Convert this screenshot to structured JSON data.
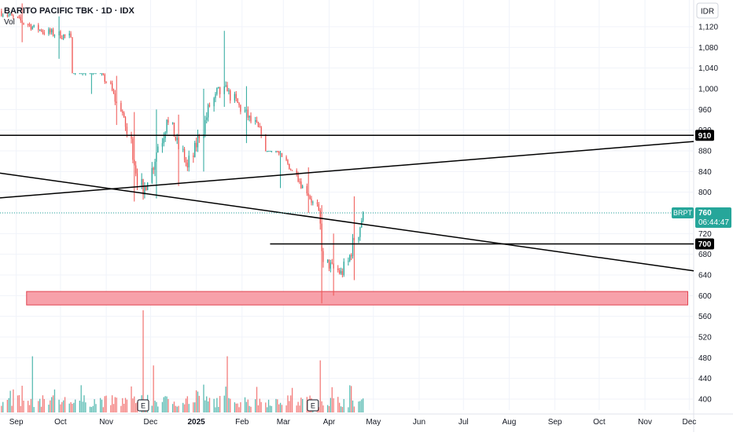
{
  "header": {
    "title": "BARITO PACIFIC TBK · 1D · IDX",
    "vol_label": "Vol"
  },
  "currency_badge": "IDR",
  "colors": {
    "up": "#26a69a",
    "down": "#ef5350",
    "zone_fill": "#f7a1aa",
    "zone_stroke": "#e0434f",
    "line": "#000000",
    "price_tag": "#26a69a",
    "grid": "#f0f3fa"
  },
  "price_tag": {
    "symbol": "BRPT",
    "price": "760",
    "countdown": "06:44:47"
  },
  "level_labels": [
    "910",
    "700"
  ],
  "earnings_markers": [
    "E",
    "E"
  ],
  "chart_data": {
    "type": "candlestick",
    "y_axis": {
      "ticks": [
        "1,120",
        "1,080",
        "1,040",
        "1,000",
        "960",
        "920",
        "880",
        "840",
        "800",
        "760",
        "720",
        "680",
        "640",
        "600",
        "560",
        "520",
        "480",
        "440",
        "400"
      ],
      "tick_values": [
        1120,
        1080,
        1040,
        1000,
        960,
        920,
        880,
        840,
        800,
        760,
        720,
        680,
        640,
        600,
        560,
        520,
        480,
        440,
        400
      ],
      "range": [
        388,
        1140
      ]
    },
    "x_axis": {
      "labels": [
        "Sep",
        "Oct",
        "Nov",
        "Dec",
        "2025",
        "Feb",
        "Mar",
        "Apr",
        "May",
        "Jun",
        "Jul",
        "Aug",
        "Sep",
        "Oct",
        "Nov",
        "Dec"
      ],
      "dates": [
        "2024-09-01",
        "2024-10-01",
        "2024-11-01",
        "2024-12-01",
        "2025-01-01",
        "2025-02-01",
        "2025-03-01",
        "2025-04-01",
        "2025-05-01",
        "2025-06-01",
        "2025-07-01",
        "2025-08-01",
        "2025-09-01",
        "2025-10-01",
        "2025-11-01",
        "2025-12-01"
      ],
      "bold": [
        "2025"
      ],
      "range": [
        "2024-08-21",
        "2025-12-04"
      ]
    },
    "last_price": 760,
    "horizontal_levels": [
      {
        "price": 910,
        "label": "910",
        "from": "2024-08-21",
        "to": "2025-12-04"
      },
      {
        "price": 700,
        "label": "700",
        "from": "2025-02-20",
        "to": "2025-12-04"
      }
    ],
    "trendlines": [
      {
        "from_date": "2024-08-21",
        "from_price": 789,
        "to_date": "2025-12-04",
        "to_price": 898
      },
      {
        "from_date": "2024-08-21",
        "from_price": 837,
        "to_date": "2025-12-04",
        "to_price": 648
      }
    ],
    "zone": {
      "from_date": "2024-09-08",
      "to_date": "2025-11-30",
      "price_low": 582,
      "price_high": 608
    },
    "earnings_dates": [
      "2024-11-26",
      "2025-03-21"
    ],
    "segments": [
      {
        "from": "2024-08-22",
        "to": "2024-09-18",
        "start": 1150,
        "end": 1112,
        "min": 1090,
        "max": 1165
      },
      {
        "from": "2024-09-19",
        "to": "2024-10-08",
        "start": 1112,
        "end": 1100,
        "min": 1058,
        "max": 1140
      },
      {
        "from": "2024-10-09",
        "to": "2024-11-01",
        "start": 1100,
        "end": 1012,
        "min": 990,
        "max": 1030
      },
      {
        "from": "2024-11-02",
        "to": "2024-11-13",
        "start": 1012,
        "end": 945,
        "min": 930,
        "max": 1025
      },
      {
        "from": "2024-11-14",
        "to": "2024-11-26",
        "start": 945,
        "end": 795,
        "min": 782,
        "max": 955
      },
      {
        "from": "2024-11-27",
        "to": "2024-12-12",
        "start": 795,
        "end": 940,
        "min": 788,
        "max": 960
      },
      {
        "from": "2024-12-13",
        "to": "2024-12-26",
        "start": 940,
        "end": 848,
        "min": 812,
        "max": 950
      },
      {
        "from": "2024-12-27",
        "to": "2025-01-14",
        "start": 848,
        "end": 990,
        "min": 840,
        "max": 1000
      },
      {
        "from": "2025-01-15",
        "to": "2025-01-22",
        "start": 990,
        "end": 995,
        "min": 965,
        "max": 1112
      },
      {
        "from": "2025-01-23",
        "to": "2025-02-14",
        "start": 995,
        "end": 912,
        "min": 895,
        "max": 1005
      },
      {
        "from": "2025-02-15",
        "to": "2025-03-10",
        "start": 912,
        "end": 835,
        "min": 808,
        "max": 880
      },
      {
        "from": "2025-03-11",
        "to": "2025-03-25",
        "start": 835,
        "end": 765,
        "min": 760,
        "max": 848
      },
      {
        "from": "2025-03-26",
        "to": "2025-03-28",
        "start": 765,
        "end": 665,
        "min": 585,
        "max": 775
      },
      {
        "from": "2025-03-29",
        "to": "2025-04-10",
        "start": 665,
        "end": 640,
        "min": 600,
        "max": 720
      },
      {
        "from": "2025-04-11",
        "to": "2025-04-24",
        "start": 640,
        "end": 760,
        "min": 630,
        "max": 792
      }
    ],
    "volume_spikes": [
      {
        "date": "2024-11-26",
        "level": 1.0,
        "up": true
      },
      {
        "date": "2024-09-22",
        "level": 0.62,
        "up": false
      },
      {
        "date": "2025-01-22",
        "level": 0.55,
        "up": true
      },
      {
        "date": "2025-03-26",
        "level": 0.51,
        "up": false
      },
      {
        "date": "2024-12-03",
        "level": 0.46,
        "up": true
      },
      {
        "date": "2024-09-12",
        "level": 0.55,
        "up": true
      },
      {
        "date": "2024-10-20",
        "level": 0.4,
        "up": false
      }
    ]
  }
}
